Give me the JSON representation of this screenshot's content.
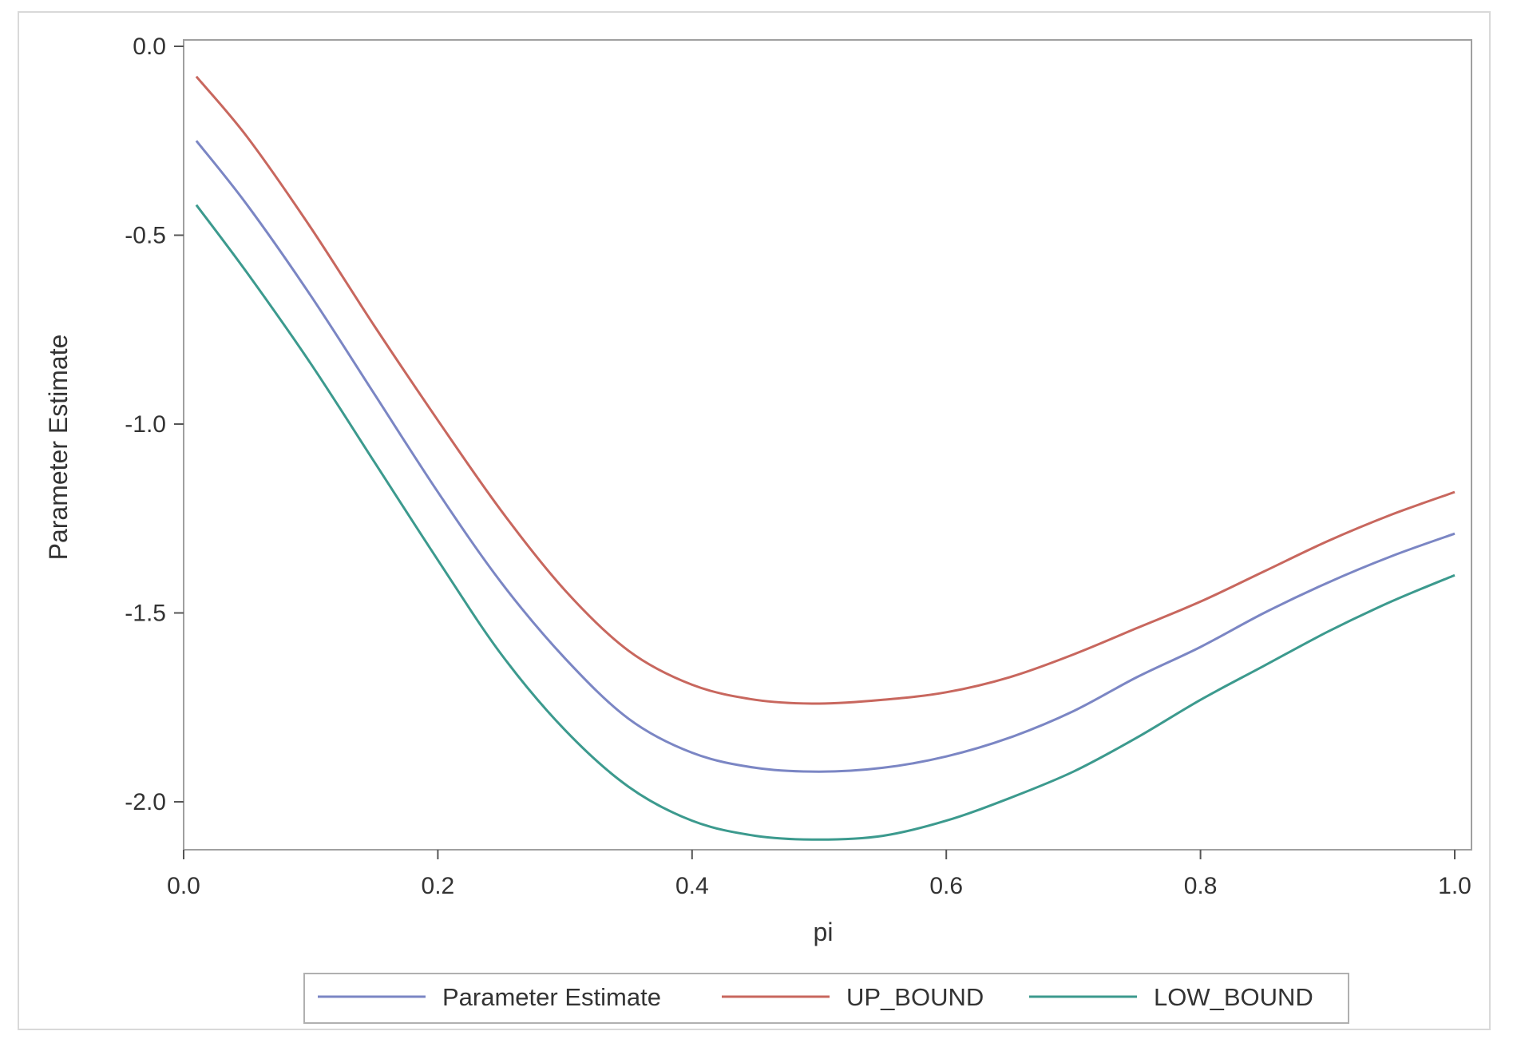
{
  "chart_data": {
    "type": "line",
    "title": "",
    "xlabel": "pi",
    "ylabel": "Parameter Estimate",
    "xlim": [
      0.0,
      1.0
    ],
    "ylim": [
      -2.1,
      0.0
    ],
    "xticks": [
      "0.0",
      "0.2",
      "0.4",
      "0.6",
      "0.8",
      "1.0"
    ],
    "yticks": [
      "0.0",
      "-0.5",
      "-1.0",
      "-1.5",
      "-2.0"
    ],
    "grid": false,
    "legend_position": "bottom",
    "x": [
      0.01,
      0.05,
      0.1,
      0.15,
      0.2,
      0.25,
      0.3,
      0.35,
      0.4,
      0.45,
      0.5,
      0.55,
      0.6,
      0.65,
      0.7,
      0.75,
      0.8,
      0.85,
      0.9,
      0.95,
      1.0
    ],
    "series": [
      {
        "name": "Parameter Estimate",
        "color": "#7b86c4",
        "values": [
          -0.25,
          -0.42,
          -0.66,
          -0.92,
          -1.18,
          -1.42,
          -1.62,
          -1.78,
          -1.87,
          -1.91,
          -1.92,
          -1.91,
          -1.88,
          -1.83,
          -1.76,
          -1.67,
          -1.59,
          -1.5,
          -1.42,
          -1.35,
          -1.29
        ]
      },
      {
        "name": "UP_BOUND",
        "color": "#c8675e",
        "values": [
          -0.08,
          -0.24,
          -0.48,
          -0.74,
          -0.99,
          -1.23,
          -1.44,
          -1.6,
          -1.69,
          -1.73,
          -1.74,
          -1.73,
          -1.71,
          -1.67,
          -1.61,
          -1.54,
          -1.47,
          -1.39,
          -1.31,
          -1.24,
          -1.18
        ]
      },
      {
        "name": "LOW_BOUND",
        "color": "#3c9a8e",
        "values": [
          -0.42,
          -0.6,
          -0.84,
          -1.1,
          -1.36,
          -1.61,
          -1.81,
          -1.96,
          -2.05,
          -2.09,
          -2.1,
          -2.09,
          -2.05,
          -1.99,
          -1.92,
          -1.83,
          -1.73,
          -1.64,
          -1.55,
          -1.47,
          -1.4
        ]
      }
    ]
  }
}
